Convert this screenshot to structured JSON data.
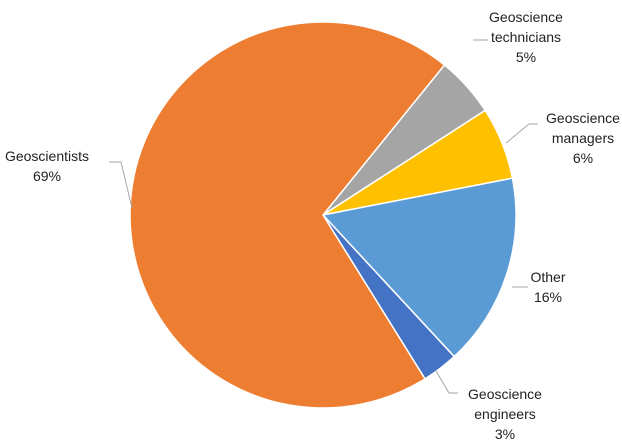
{
  "chart_data": {
    "type": "pie",
    "title": "",
    "start_angle_deg": 39,
    "direction": "clockwise",
    "slices": [
      {
        "label_lines": [
          "Geoscience",
          "technicians"
        ],
        "value": 5,
        "value_label": "5%",
        "color": "#a5a5a5"
      },
      {
        "label_lines": [
          "Geoscience",
          "managers"
        ],
        "value": 6,
        "value_label": "6%",
        "color": "#ffc000"
      },
      {
        "label_lines": [
          "Other"
        ],
        "value": 16,
        "value_label": "16%",
        "color": "#5b9bd5"
      },
      {
        "label_lines": [
          "Geoscience",
          "engineers"
        ],
        "value": 3,
        "value_label": "3%",
        "color": "#4472c4"
      },
      {
        "label_lines": [
          "Geoscientists"
        ],
        "value": 69,
        "value_label": "69%",
        "color": "#ed7d31"
      }
    ],
    "legend": "none",
    "data_labels": "outside with leader lines"
  }
}
